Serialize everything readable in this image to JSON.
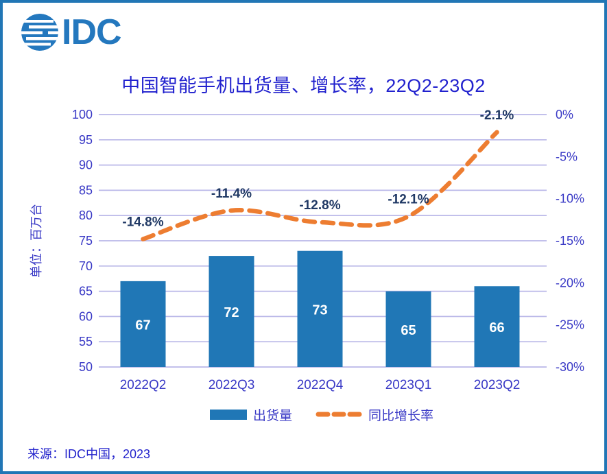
{
  "logo": {
    "text": "IDC",
    "icon": "idc-globe-icon"
  },
  "title": "中国智能手机出货量、增长率，22Q2-23Q2",
  "footer": "来源：IDC中国，2023",
  "chart_data": {
    "type": "bar",
    "categories": [
      "2022Q2",
      "2022Q3",
      "2022Q4",
      "2023Q1",
      "2023Q2"
    ],
    "series": [
      {
        "name": "出货量",
        "kind": "bar",
        "axis": "left",
        "values": [
          67,
          72,
          73,
          65,
          66
        ],
        "value_labels": [
          "67",
          "72",
          "73",
          "65",
          "66"
        ],
        "color": "#2077B6"
      },
      {
        "name": "同比增长率",
        "kind": "line",
        "dashed": true,
        "smooth": true,
        "axis": "right",
        "values": [
          -14.8,
          -11.4,
          -12.8,
          -12.1,
          -2.1
        ],
        "value_labels": [
          "-14.8%",
          "-11.4%",
          "-12.8%",
          "-12.1%",
          "-2.1%"
        ],
        "color": "#ED7D31"
      }
    ],
    "left_axis": {
      "title": "单位：百万台",
      "min": 50,
      "max": 100,
      "step": 5,
      "ticks": [
        "100",
        "95",
        "90",
        "85",
        "80",
        "75",
        "70",
        "65",
        "60",
        "55",
        "50"
      ]
    },
    "right_axis": {
      "min": -30,
      "max": 0,
      "step": 5,
      "ticks": [
        "0%",
        "-5%",
        "-10%",
        "-15%",
        "-20%",
        "-25%",
        "-30%"
      ]
    },
    "grid": true,
    "legend_position": "bottom",
    "legend": [
      {
        "label": "出货量",
        "swatch": "bar"
      },
      {
        "label": "同比增长率",
        "swatch": "dashed-line"
      }
    ],
    "colors": {
      "bar": "#2077B6",
      "line": "#ED7D31",
      "grid": "#B9B7E8",
      "title_text": "#2121CE",
      "axis_text": "#3A3AC6",
      "point_label_text": "#1F3864",
      "bar_label_text": "#FFFFFF",
      "frame_border": "#2176B5",
      "logo_blue": "#2478BE"
    }
  }
}
